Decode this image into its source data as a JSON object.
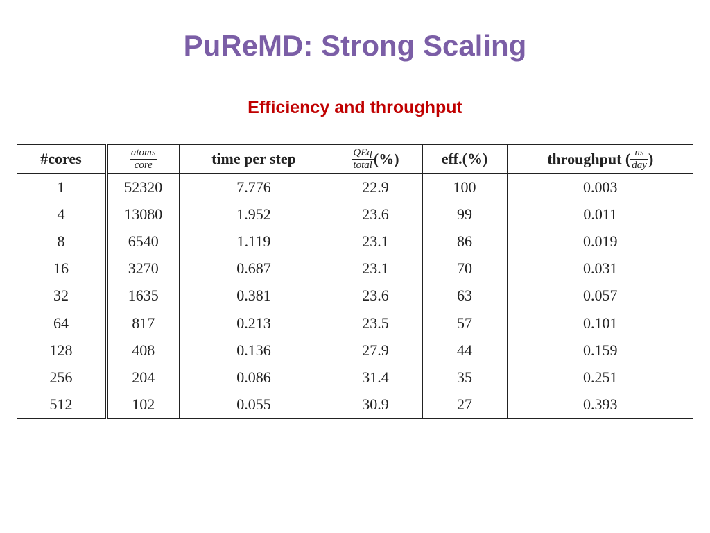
{
  "slide": {
    "title": "PuReMD: Strong Scaling",
    "subtitle": "Efficiency and throughput"
  },
  "colors": {
    "title": "#7b5ea6",
    "subtitle": "#c00000",
    "table_text": "#222222"
  },
  "table": {
    "headers": {
      "cores": "#cores",
      "atoms_num": "atoms",
      "atoms_den": "core",
      "time": "time per step",
      "qeq_num": "QEq",
      "qeq_den": "total",
      "qeq_suffix": "(%)",
      "eff": "eff.(%)",
      "throughput_prefix": "throughput (",
      "throughput_num": "ns",
      "throughput_den": "day",
      "throughput_suffix": ")"
    },
    "rows": [
      {
        "cores": "1",
        "atoms": "52320",
        "time": "7.776",
        "qeq": "22.9",
        "eff": "100",
        "throughput": "0.003"
      },
      {
        "cores": "4",
        "atoms": "13080",
        "time": "1.952",
        "qeq": "23.6",
        "eff": "99",
        "throughput": "0.011"
      },
      {
        "cores": "8",
        "atoms": "6540",
        "time": "1.119",
        "qeq": "23.1",
        "eff": "86",
        "throughput": "0.019"
      },
      {
        "cores": "16",
        "atoms": "3270",
        "time": "0.687",
        "qeq": "23.1",
        "eff": "70",
        "throughput": "0.031"
      },
      {
        "cores": "32",
        "atoms": "1635",
        "time": "0.381",
        "qeq": "23.6",
        "eff": "63",
        "throughput": "0.057"
      },
      {
        "cores": "64",
        "atoms": "817",
        "time": "0.213",
        "qeq": "23.5",
        "eff": "57",
        "throughput": "0.101"
      },
      {
        "cores": "128",
        "atoms": "408",
        "time": "0.136",
        "qeq": "27.9",
        "eff": "44",
        "throughput": "0.159"
      },
      {
        "cores": "256",
        "atoms": "204",
        "time": "0.086",
        "qeq": "31.4",
        "eff": "35",
        "throughput": "0.251"
      },
      {
        "cores": "512",
        "atoms": "102",
        "time": "0.055",
        "qeq": "30.9",
        "eff": "27",
        "throughput": "0.393"
      }
    ]
  }
}
